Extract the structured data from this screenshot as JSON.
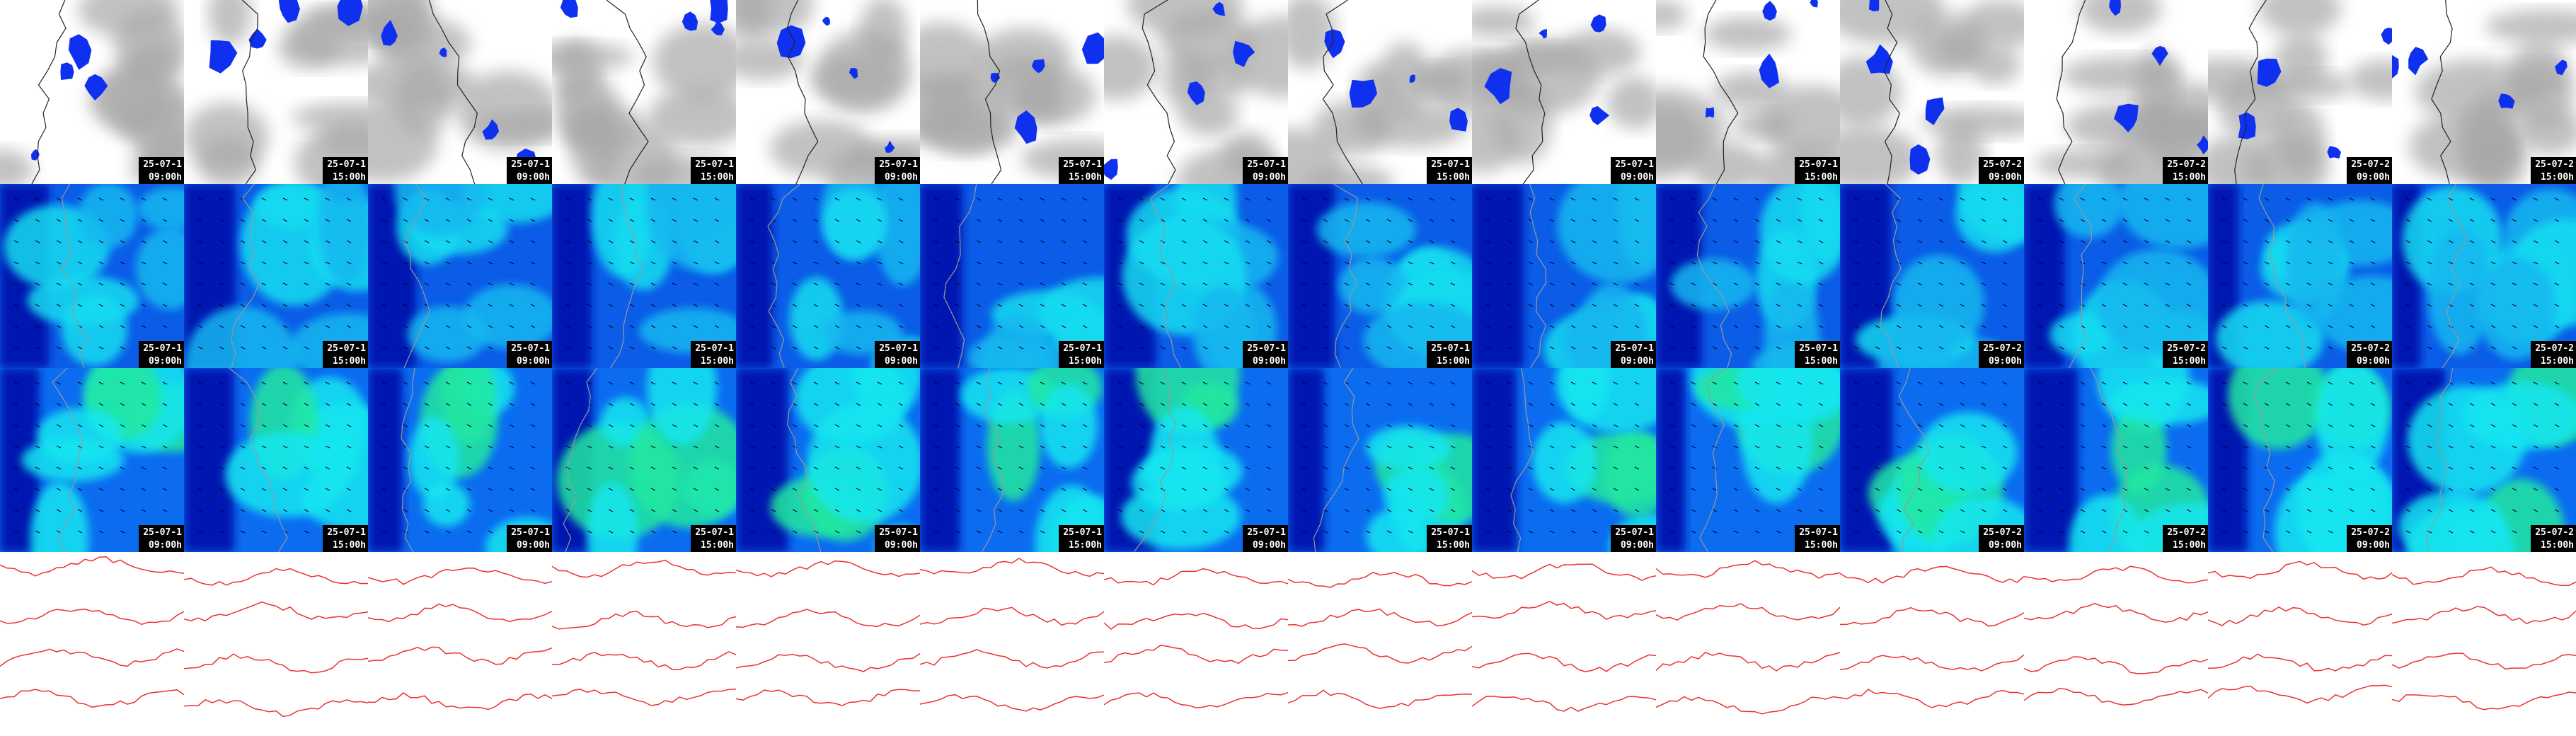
{
  "rows": [
    {
      "tiles": [
        {
          "date": "25-07-1",
          "time": "09:00h"
        },
        {
          "date": "25-07-1",
          "time": "15:00h"
        },
        {
          "date": "25-07-1",
          "time": "09:00h"
        },
        {
          "date": "25-07-1",
          "time": "15:00h"
        },
        {
          "date": "25-07-1",
          "time": "09:00h"
        },
        {
          "date": "25-07-1",
          "time": "15:00h"
        },
        {
          "date": "25-07-1",
          "time": "09:00h"
        },
        {
          "date": "25-07-1",
          "time": "15:00h"
        },
        {
          "date": "25-07-1",
          "time": "09:00h"
        },
        {
          "date": "25-07-1",
          "time": "15:00h"
        },
        {
          "date": "25-07-2",
          "time": "09:00h"
        },
        {
          "date": "25-07-2",
          "time": "15:00h"
        },
        {
          "date": "25-07-2",
          "time": "09:00h"
        },
        {
          "date": "25-07-2",
          "time": "15:00h"
        }
      ]
    },
    {
      "tiles": [
        {
          "date": "25-07-1",
          "time": "09:00h"
        },
        {
          "date": "25-07-1",
          "time": "15:00h"
        },
        {
          "date": "25-07-1",
          "time": "09:00h"
        },
        {
          "date": "25-07-1",
          "time": "15:00h"
        },
        {
          "date": "25-07-1",
          "time": "09:00h"
        },
        {
          "date": "25-07-1",
          "time": "15:00h"
        },
        {
          "date": "25-07-1",
          "time": "09:00h"
        },
        {
          "date": "25-07-1",
          "time": "15:00h"
        },
        {
          "date": "25-07-1",
          "time": "09:00h"
        },
        {
          "date": "25-07-1",
          "time": "15:00h"
        },
        {
          "date": "25-07-2",
          "time": "09:00h"
        },
        {
          "date": "25-07-2",
          "time": "15:00h"
        },
        {
          "date": "25-07-2",
          "time": "09:00h"
        },
        {
          "date": "25-07-2",
          "time": "15:00h"
        }
      ]
    },
    {
      "tiles": [
        {
          "date": "25-07-1",
          "time": "09:00h"
        },
        {
          "date": "25-07-1",
          "time": "15:00h"
        },
        {
          "date": "25-07-1",
          "time": "09:00h"
        },
        {
          "date": "25-07-1",
          "time": "15:00h"
        },
        {
          "date": "25-07-1",
          "time": "09:00h"
        },
        {
          "date": "25-07-1",
          "time": "15:00h"
        },
        {
          "date": "25-07-1",
          "time": "09:00h"
        },
        {
          "date": "25-07-1",
          "time": "15:00h"
        },
        {
          "date": "25-07-1",
          "time": "09:00h"
        },
        {
          "date": "25-07-1",
          "time": "15:00h"
        },
        {
          "date": "25-07-2",
          "time": "09:00h"
        },
        {
          "date": "25-07-2",
          "time": "15:00h"
        },
        {
          "date": "25-07-2",
          "time": "09:00h"
        },
        {
          "date": "25-07-2",
          "time": "15:00h"
        }
      ]
    }
  ]
}
